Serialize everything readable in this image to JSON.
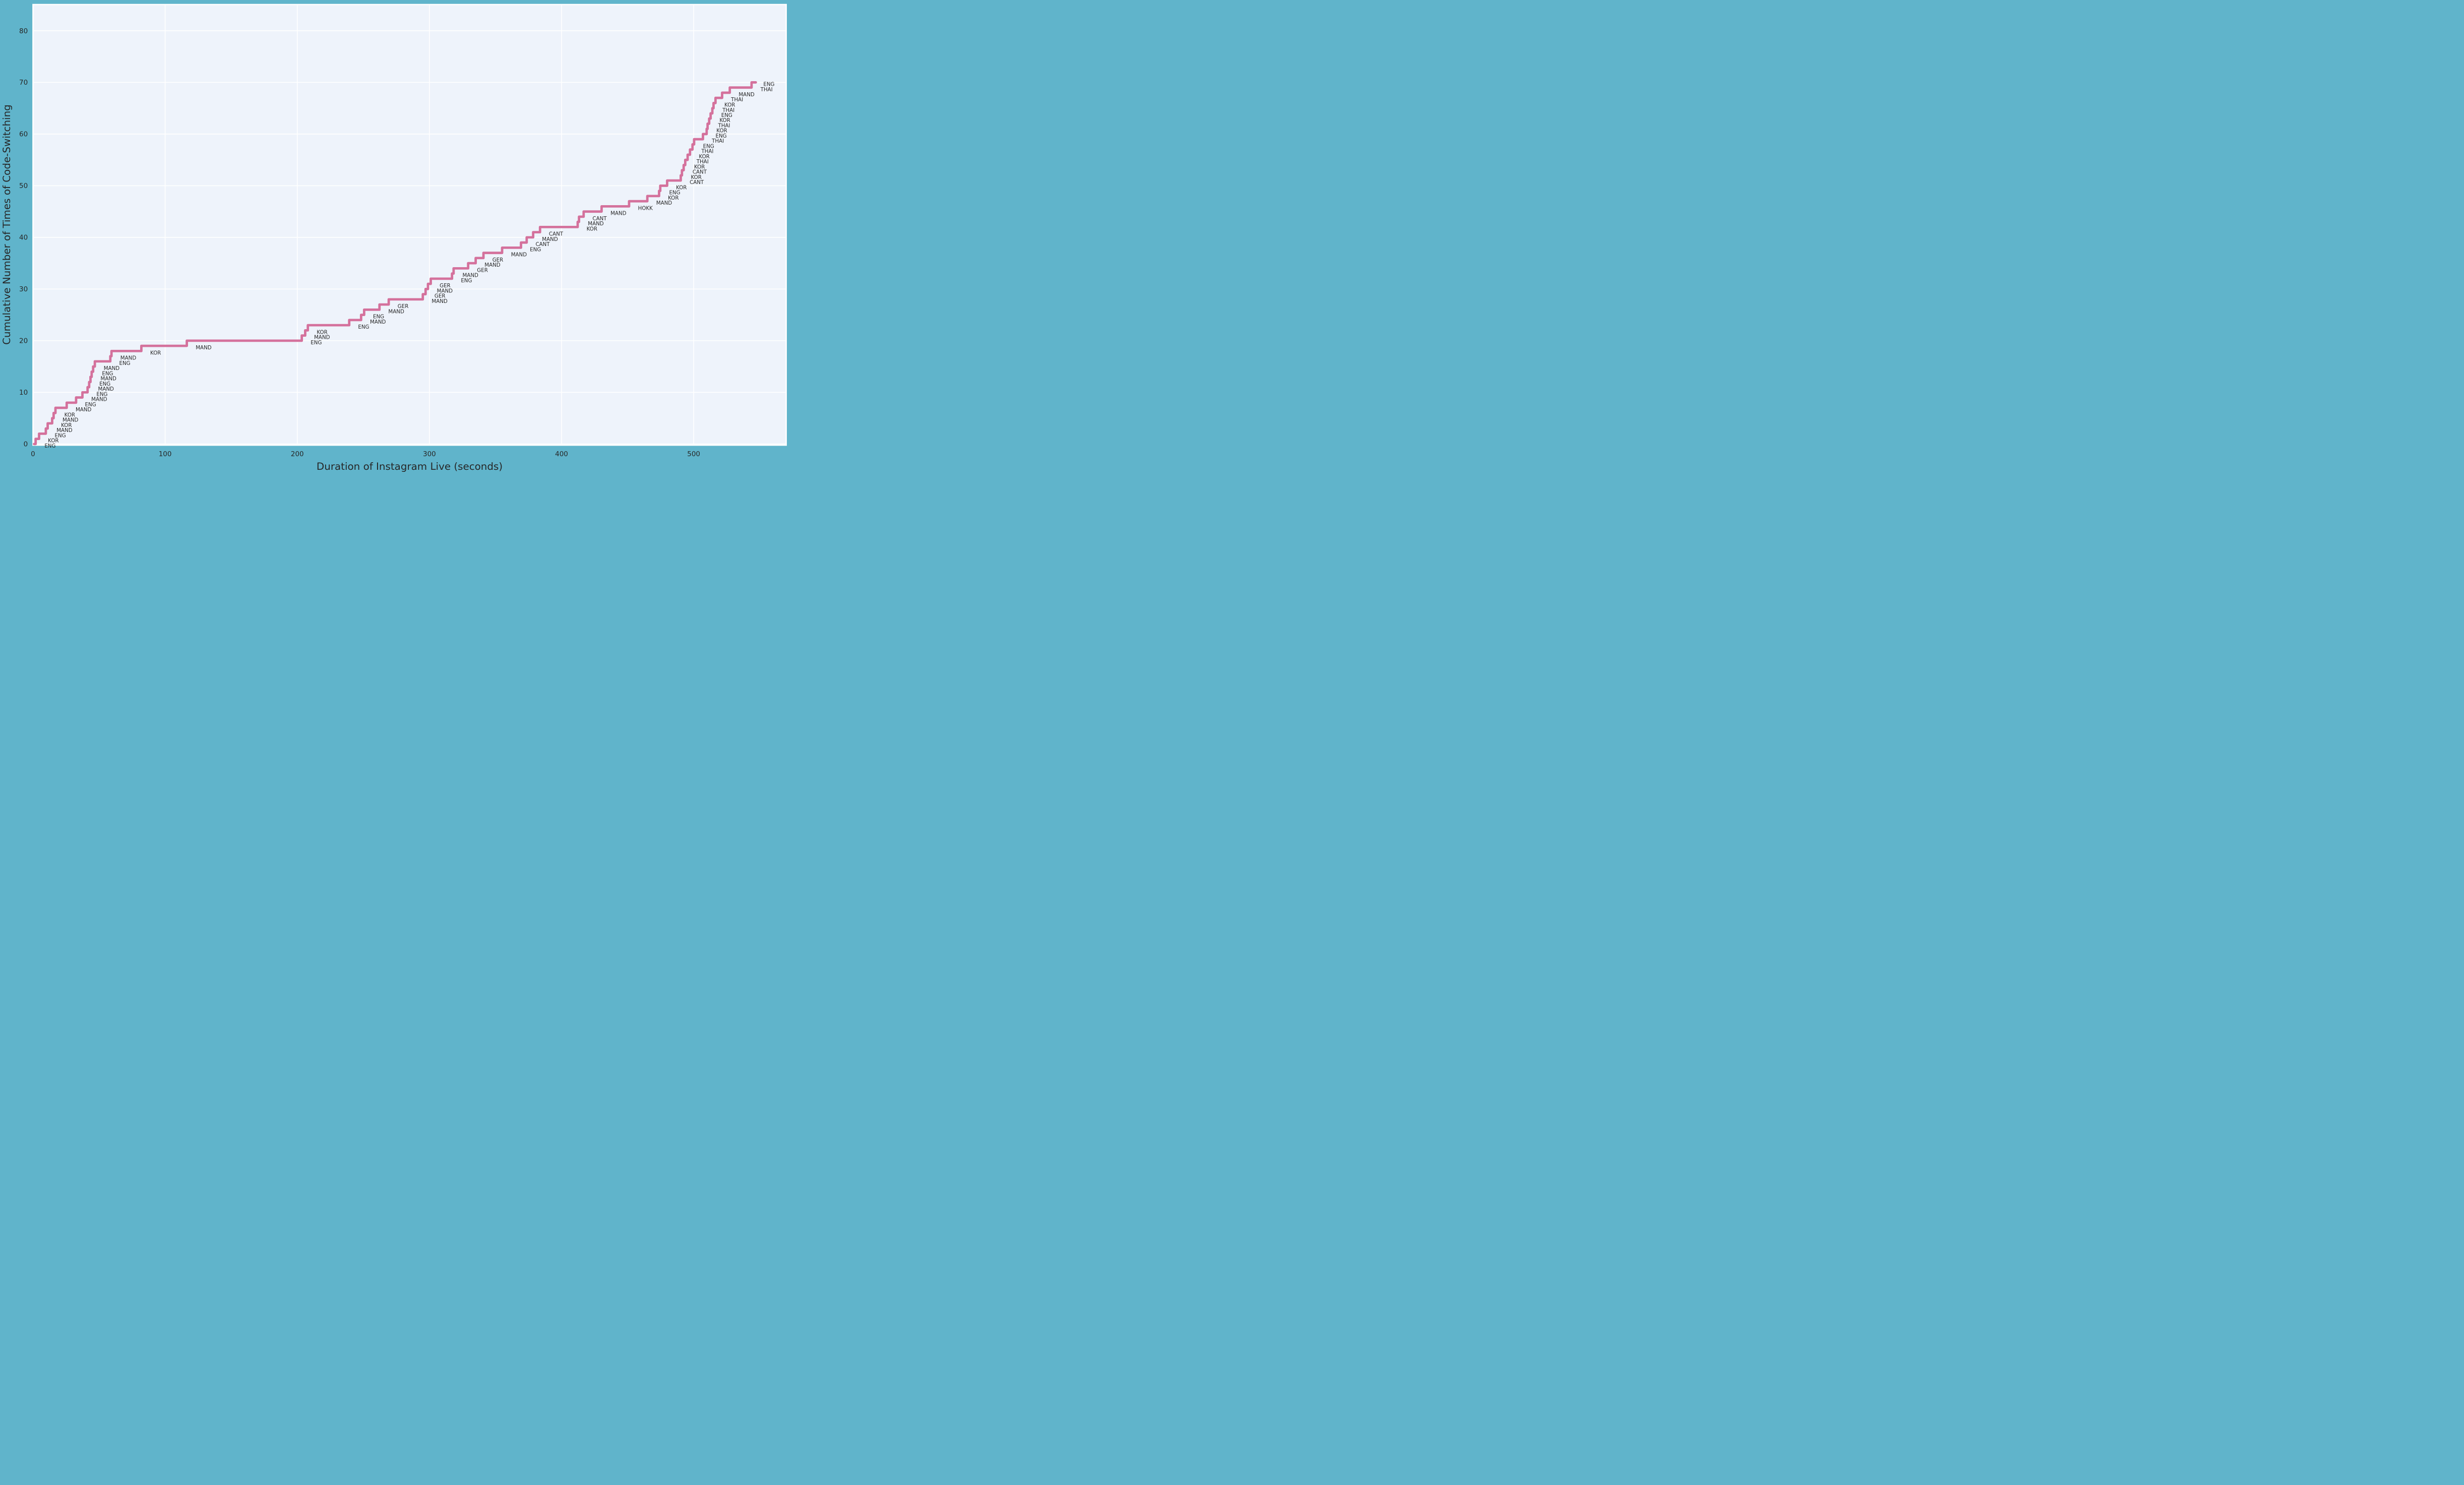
{
  "chart_data": {
    "type": "line",
    "subtype": "cumulative-step",
    "title": "",
    "xlabel": "Duration of Instagram Live (seconds)",
    "ylabel": "Cumulative Number of Times of Code-Switching",
    "x_ticks": [
      0,
      100,
      200,
      300,
      400,
      500
    ],
    "y_ticks": [
      0,
      10,
      20,
      30,
      40,
      50,
      60,
      70,
      80
    ],
    "xlim": [
      0,
      570
    ],
    "ylim": [
      0,
      85
    ],
    "grid": true,
    "legend_position": "none",
    "colors": {
      "line": "#d4719c",
      "plot_background": "#eef3fb",
      "outer_background": "#60b4cb",
      "gridline": "#ffffff",
      "spine": "#ffffff",
      "text": "#262626"
    },
    "events": [
      {
        "n": 1,
        "lang": "ENG",
        "t": 2.0
      },
      {
        "n": 2,
        "lang": "KOR",
        "t": 4.6
      },
      {
        "n": 3,
        "lang": "ENG",
        "t": 9.7
      },
      {
        "n": 4,
        "lang": "MAND",
        "t": 11.1
      },
      {
        "n": 5,
        "lang": "KOR",
        "t": 14.5
      },
      {
        "n": 6,
        "lang": "MAND",
        "t": 15.6
      },
      {
        "n": 7,
        "lang": "KOR",
        "t": 17.0
      },
      {
        "n": 8,
        "lang": "MAND",
        "t": 25.5
      },
      {
        "n": 9,
        "lang": "ENG",
        "t": 32.6
      },
      {
        "n": 10,
        "lang": "MAND",
        "t": 37.4
      },
      {
        "n": 11,
        "lang": "ENG",
        "t": 41.3
      },
      {
        "n": 12,
        "lang": "MAND",
        "t": 42.5
      },
      {
        "n": 13,
        "lang": "ENG",
        "t": 43.5
      },
      {
        "n": 14,
        "lang": "MAND",
        "t": 44.4
      },
      {
        "n": 15,
        "lang": "ENG",
        "t": 45.5
      },
      {
        "n": 16,
        "lang": "MAND",
        "t": 46.8
      },
      {
        "n": 17,
        "lang": "ENG",
        "t": 58.5
      },
      {
        "n": 18,
        "lang": "MAND",
        "t": 59.4
      },
      {
        "n": 19,
        "lang": "KOR",
        "t": 82.0
      },
      {
        "n": 20,
        "lang": "MAND",
        "t": 116.4
      },
      {
        "n": 21,
        "lang": "ENG",
        "t": 203.4
      },
      {
        "n": 22,
        "lang": "MAND",
        "t": 206.0
      },
      {
        "n": 23,
        "lang": "KOR",
        "t": 208.0
      },
      {
        "n": 24,
        "lang": "ENG",
        "t": 239.3
      },
      {
        "n": 25,
        "lang": "MAND",
        "t": 248.3
      },
      {
        "n": 26,
        "lang": "ENG",
        "t": 250.6
      },
      {
        "n": 27,
        "lang": "MAND",
        "t": 262.2
      },
      {
        "n": 28,
        "lang": "GER",
        "t": 269.2
      },
      {
        "n": 29,
        "lang": "MAND",
        "t": 295.0
      },
      {
        "n": 30,
        "lang": "GER",
        "t": 297.1
      },
      {
        "n": 31,
        "lang": "MAND",
        "t": 298.9
      },
      {
        "n": 32,
        "lang": "GER",
        "t": 301.0
      },
      {
        "n": 33,
        "lang": "ENG",
        "t": 317.1
      },
      {
        "n": 34,
        "lang": "MAND",
        "t": 318.3
      },
      {
        "n": 35,
        "lang": "GER",
        "t": 329.3
      },
      {
        "n": 36,
        "lang": "MAND",
        "t": 335.0
      },
      {
        "n": 37,
        "lang": "GER",
        "t": 340.9
      },
      {
        "n": 38,
        "lang": "MAND",
        "t": 355.0
      },
      {
        "n": 39,
        "lang": "ENG",
        "t": 369.3
      },
      {
        "n": 40,
        "lang": "CANT",
        "t": 373.6
      },
      {
        "n": 41,
        "lang": "MAND",
        "t": 378.5
      },
      {
        "n": 42,
        "lang": "CANT",
        "t": 383.7
      },
      {
        "n": 43,
        "lang": "KOR",
        "t": 412.2
      },
      {
        "n": 44,
        "lang": "MAND",
        "t": 413.2
      },
      {
        "n": 45,
        "lang": "CANT",
        "t": 416.7
      },
      {
        "n": 46,
        "lang": "MAND",
        "t": 430.3
      },
      {
        "n": 47,
        "lang": "HOKK",
        "t": 451.1
      },
      {
        "n": 48,
        "lang": "MAND",
        "t": 464.9
      },
      {
        "n": 49,
        "lang": "KOR",
        "t": 473.8
      },
      {
        "n": 50,
        "lang": "ENG",
        "t": 474.7
      },
      {
        "n": 51,
        "lang": "KOR",
        "t": 479.9
      },
      {
        "n": 52,
        "lang": "CANT",
        "t": 490.2
      },
      {
        "n": 53,
        "lang": "KOR",
        "t": 491.1
      },
      {
        "n": 54,
        "lang": "CANT",
        "t": 492.4
      },
      {
        "n": 55,
        "lang": "KOR",
        "t": 493.6
      },
      {
        "n": 56,
        "lang": "THAI",
        "t": 495.4
      },
      {
        "n": 57,
        "lang": "KOR",
        "t": 497.2
      },
      {
        "n": 58,
        "lang": "THAI",
        "t": 499.1
      },
      {
        "n": 59,
        "lang": "ENG",
        "t": 500.3
      },
      {
        "n": 60,
        "lang": "THAI",
        "t": 507.0
      },
      {
        "n": 61,
        "lang": "ENG",
        "t": 509.8
      },
      {
        "n": 62,
        "lang": "KOR",
        "t": 510.5
      },
      {
        "n": 63,
        "lang": "THAI",
        "t": 511.7
      },
      {
        "n": 64,
        "lang": "KOR",
        "t": 512.8
      },
      {
        "n": 65,
        "lang": "ENG",
        "t": 514.1
      },
      {
        "n": 66,
        "lang": "THAI",
        "t": 515.0
      },
      {
        "n": 67,
        "lang": "KOR",
        "t": 516.5
      },
      {
        "n": 68,
        "lang": "THAI",
        "t": 521.5
      },
      {
        "n": 69,
        "lang": "MAND",
        "t": 527.3
      },
      {
        "n": 70,
        "lang": "THAI",
        "t": 543.8
      }
    ],
    "end_label": {
      "lang": "ENG",
      "t": 546.0,
      "level": 70
    },
    "line_end_t": 547.0,
    "line_start_t": 0.8
  }
}
